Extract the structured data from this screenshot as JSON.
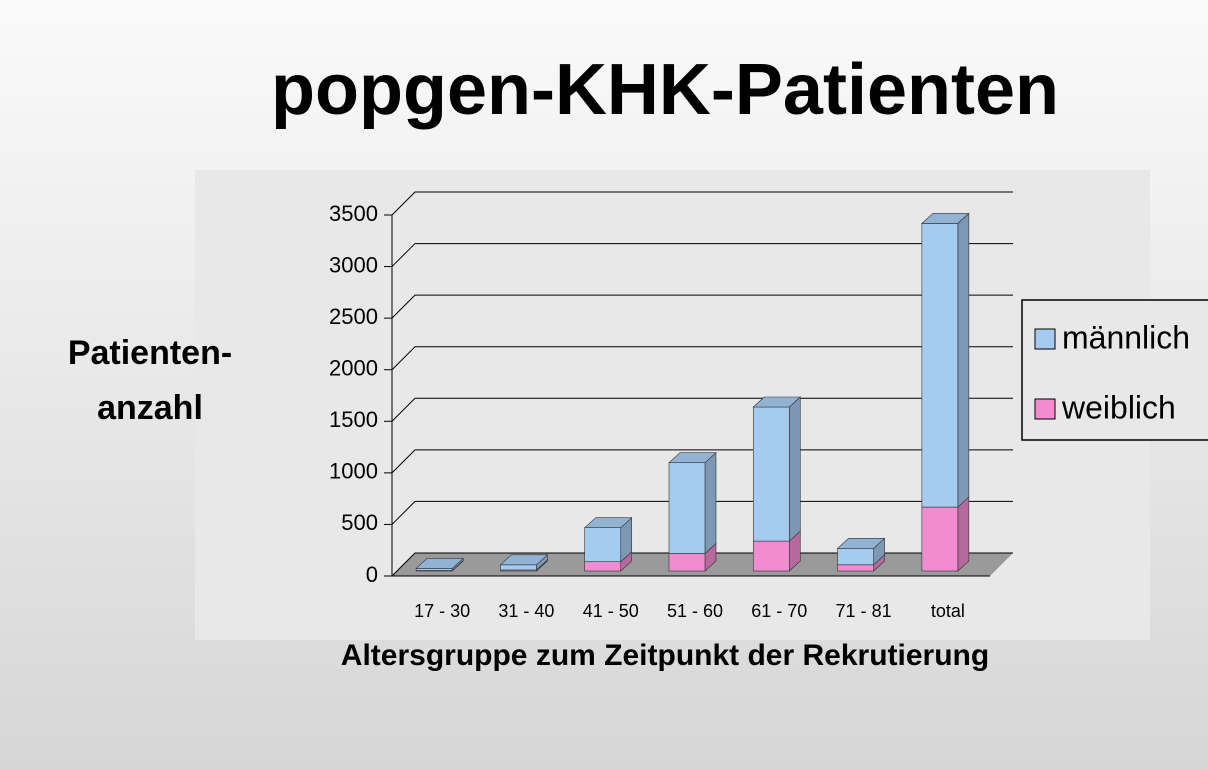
{
  "chart_data": {
    "type": "bar",
    "stacked": true,
    "title": "popgen-KHK-Patienten",
    "y_label_lines": [
      "Patienten-",
      "anzahl"
    ],
    "x_label": "Altersgruppe zum Zeitpunkt der Rekrutierung",
    "categories": [
      "17 - 30",
      "31 - 40",
      "41 - 50",
      "51 - 60",
      "61 - 70",
      "71 - 81",
      "total"
    ],
    "series": [
      {
        "name": "männlich",
        "color": "#a6cbf0",
        "values": [
          20,
          50,
          330,
          880,
          1300,
          160,
          2750
        ]
      },
      {
        "name": "weiblich",
        "color": "#f28cd0",
        "values": [
          5,
          10,
          90,
          170,
          290,
          60,
          620
        ]
      }
    ],
    "ylim": [
      0,
      3500
    ],
    "yticks": [
      0,
      500,
      1000,
      1500,
      2000,
      2500,
      3000,
      3500
    ],
    "grid": true,
    "legend": "right"
  }
}
